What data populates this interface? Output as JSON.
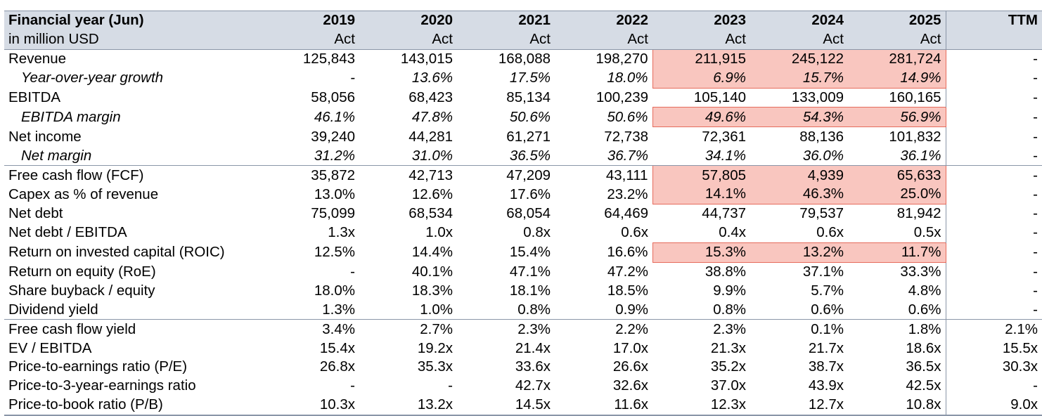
{
  "table": {
    "header": {
      "title": "Financial year (Jun)",
      "subtitle": "in million USD",
      "years": [
        "2019",
        "2020",
        "2021",
        "2022",
        "2023",
        "2024",
        "2025"
      ],
      "types": [
        "Act",
        "Act",
        "Act",
        "Act",
        "Act",
        "Act",
        "Act"
      ],
      "ttm": "TTM"
    },
    "highlight_color": "#f9c6bf",
    "highlight_border_color": "#e66b5c",
    "rows": [
      {
        "label": "Revenue",
        "italic": false,
        "values": [
          "125,843",
          "143,015",
          "168,088",
          "198,270",
          "211,915",
          "245,122",
          "281,724"
        ],
        "ttm": "-"
      },
      {
        "label": "Year-over-year growth",
        "italic": true,
        "values": [
          "-",
          "13.6%",
          "17.5%",
          "18.0%",
          "6.9%",
          "15.7%",
          "14.9%"
        ],
        "ttm": "-"
      },
      {
        "label": "EBITDA",
        "italic": false,
        "values": [
          "58,056",
          "68,423",
          "85,134",
          "100,239",
          "105,140",
          "133,009",
          "160,165"
        ],
        "ttm": "-"
      },
      {
        "label": "EBITDA margin",
        "italic": true,
        "values": [
          "46.1%",
          "47.8%",
          "50.6%",
          "50.6%",
          "49.6%",
          "54.3%",
          "56.9%"
        ],
        "ttm": "-"
      },
      {
        "label": "Net income",
        "italic": false,
        "values": [
          "39,240",
          "44,281",
          "61,271",
          "72,738",
          "72,361",
          "88,136",
          "101,832"
        ],
        "ttm": "-"
      },
      {
        "label": "Net margin",
        "italic": true,
        "values": [
          "31.2%",
          "31.0%",
          "36.5%",
          "36.7%",
          "34.1%",
          "36.0%",
          "36.1%"
        ],
        "ttm": "-"
      },
      {
        "label": "Free cash flow (FCF)",
        "italic": false,
        "values": [
          "35,872",
          "42,713",
          "47,209",
          "43,111",
          "57,805",
          "4,939",
          "65,633"
        ],
        "ttm": "-"
      },
      {
        "label": "Capex as % of revenue",
        "italic": false,
        "values": [
          "13.0%",
          "12.6%",
          "17.6%",
          "23.2%",
          "14.1%",
          "46.3%",
          "25.0%"
        ],
        "ttm": "-"
      },
      {
        "label": "Net debt",
        "italic": false,
        "values": [
          "75,099",
          "68,534",
          "68,054",
          "64,469",
          "44,737",
          "79,537",
          "81,942"
        ],
        "ttm": "-"
      },
      {
        "label": "Net debt / EBITDA",
        "italic": false,
        "values": [
          "1.3x",
          "1.0x",
          "0.8x",
          "0.6x",
          "0.4x",
          "0.6x",
          "0.5x"
        ],
        "ttm": "-"
      },
      {
        "label": "Return on invested capital (ROIC)",
        "italic": false,
        "values": [
          "12.5%",
          "14.4%",
          "15.4%",
          "16.6%",
          "15.3%",
          "13.2%",
          "11.7%"
        ],
        "ttm": "-"
      },
      {
        "label": "Return on equity (RoE)",
        "italic": false,
        "values": [
          "-",
          "40.1%",
          "47.1%",
          "47.2%",
          "38.8%",
          "37.1%",
          "33.3%"
        ],
        "ttm": "-"
      },
      {
        "label": "Share buyback / equity",
        "italic": false,
        "values": [
          "18.0%",
          "18.3%",
          "18.1%",
          "18.5%",
          "9.9%",
          "5.7%",
          "4.8%"
        ],
        "ttm": "-"
      },
      {
        "label": "Dividend yield",
        "italic": false,
        "values": [
          "1.3%",
          "1.0%",
          "0.8%",
          "0.9%",
          "0.8%",
          "0.6%",
          "0.6%"
        ],
        "ttm": "-"
      },
      {
        "label": "Free cash flow yield",
        "italic": false,
        "values": [
          "3.4%",
          "2.7%",
          "2.3%",
          "2.2%",
          "2.3%",
          "0.1%",
          "1.8%"
        ],
        "ttm": "2.1%"
      },
      {
        "label": "EV / EBITDA",
        "italic": false,
        "values": [
          "15.4x",
          "19.2x",
          "21.4x",
          "17.0x",
          "21.3x",
          "21.7x",
          "18.6x"
        ],
        "ttm": "15.5x"
      },
      {
        "label": "Price-to-earnings ratio (P/E)",
        "italic": false,
        "values": [
          "26.8x",
          "35.3x",
          "33.6x",
          "26.6x",
          "35.2x",
          "38.7x",
          "36.5x"
        ],
        "ttm": "30.3x"
      },
      {
        "label": "Price-to-3-year-earnings ratio",
        "italic": false,
        "values": [
          "-",
          "-",
          "42.7x",
          "32.6x",
          "37.0x",
          "43.9x",
          "42.5x"
        ],
        "ttm": "-"
      },
      {
        "label": "Price-to-book ratio (P/B)",
        "italic": false,
        "values": [
          "10.3x",
          "13.2x",
          "14.5x",
          "11.6x",
          "12.3x",
          "12.7x",
          "10.8x"
        ],
        "ttm": "9.0x"
      }
    ]
  }
}
